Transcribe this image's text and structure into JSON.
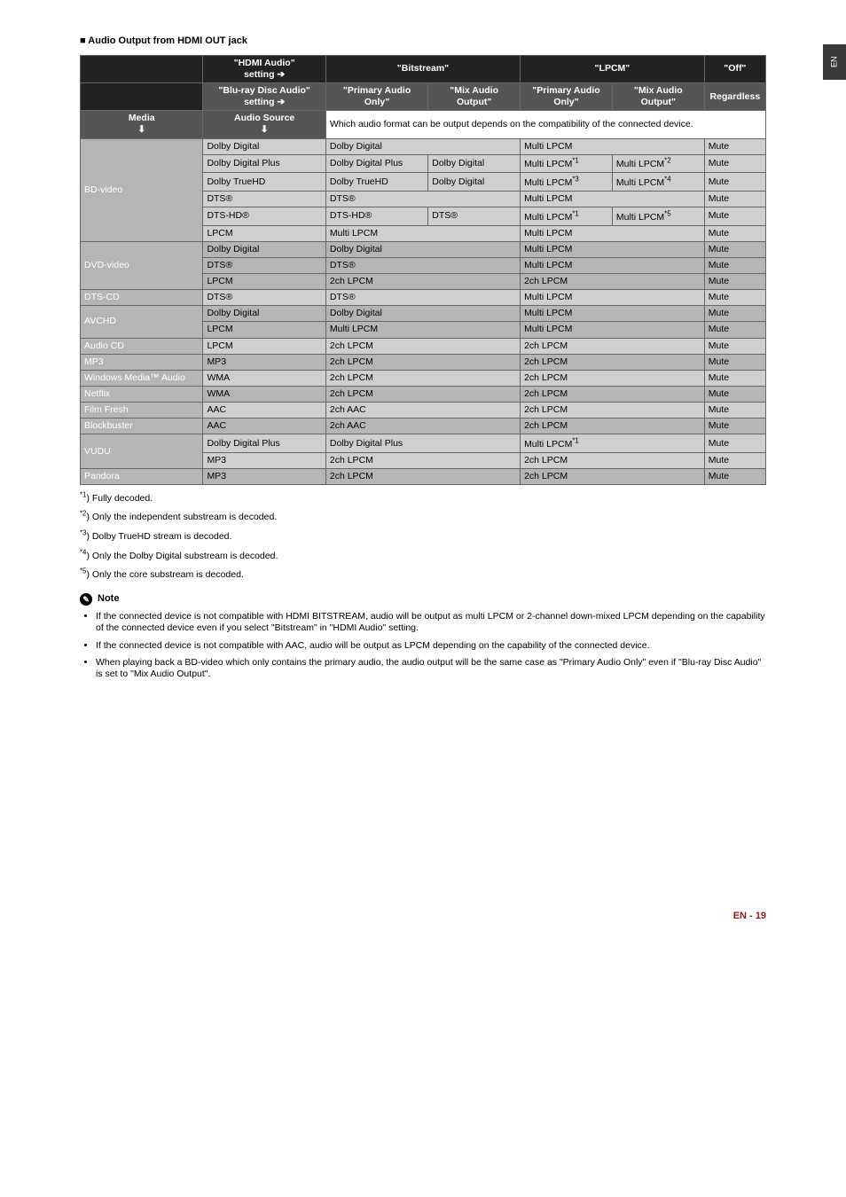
{
  "side_tab": "EN",
  "section_title": "Audio Output from HDMI OUT jack",
  "header": {
    "blank_left": "",
    "hdmi_audio": "\"HDMI Audio\"\nsetting  ➔",
    "bitstream": "\"Bitstream\"",
    "lpcm": "\"LPCM\"",
    "off": "\"Off\"",
    "bluray": "\"Blu-ray Disc Audio\" setting ➔",
    "primary_audio_only": "\"Primary Audio Only\"",
    "mix_audio_output": "\"Mix Audio Output\"",
    "regardless": "Regardless",
    "media": "Media\n⬇",
    "audio_source": "Audio Source\n⬇",
    "which": "Which audio format can be output depends on the compatibility of the connected device."
  },
  "rows": {
    "bd": {
      "label": "BD-video",
      "r1": {
        "src": "Dolby Digital",
        "bits": "Dolby Digital",
        "lpcm": "Multi LPCM",
        "off": "Mute"
      },
      "r2": {
        "src": "Dolby Digital Plus",
        "bits1": "Dolby Digital Plus",
        "bits2": "Dolby Digital",
        "lpcm1": "Multi LPCM*1",
        "lpcm2": "Multi LPCM*2",
        "off": "Mute"
      },
      "r3": {
        "src": "Dolby TrueHD",
        "bits1": "Dolby TrueHD",
        "bits2": "Dolby Digital",
        "lpcm1": "Multi LPCM*3",
        "lpcm2": "Multi LPCM*4",
        "off": "Mute"
      },
      "r4": {
        "src": "DTS®",
        "bits": "DTS®",
        "lpcm": "Multi LPCM",
        "off": "Mute"
      },
      "r5": {
        "src": "DTS-HD®",
        "bits1": "DTS-HD®",
        "bits2": "DTS®",
        "lpcm1": "Multi LPCM*1",
        "lpcm2": "Multi LPCM*5",
        "off": "Mute"
      },
      "r6": {
        "src": "LPCM",
        "bits": "Multi LPCM",
        "lpcm": "Multi LPCM",
        "off": "Mute"
      }
    },
    "dvd": {
      "label": "DVD-video",
      "r1": {
        "src": "Dolby Digital",
        "bits": "Dolby Digital",
        "lpcm": "Multi LPCM",
        "off": "Mute"
      },
      "r2": {
        "src": "DTS®",
        "bits": "DTS®",
        "lpcm": "Multi LPCM",
        "off": "Mute"
      },
      "r3": {
        "src": "LPCM",
        "bits": "2ch LPCM",
        "lpcm": "2ch LPCM",
        "off": "Mute"
      }
    },
    "dtscd": {
      "label": "DTS-CD",
      "src": "DTS®",
      "bits": "DTS®",
      "lpcm": "Multi LPCM",
      "off": "Mute"
    },
    "avchd": {
      "label": "AVCHD",
      "r1": {
        "src": "Dolby Digital",
        "bits": "Dolby Digital",
        "lpcm": "Multi LPCM",
        "off": "Mute"
      },
      "r2": {
        "src": "LPCM",
        "bits": "Multi LPCM",
        "lpcm": "Multi LPCM",
        "off": "Mute"
      }
    },
    "audiocd": {
      "label": "Audio CD",
      "src": "LPCM",
      "bits": "2ch LPCM",
      "lpcm": "2ch LPCM",
      "off": "Mute"
    },
    "mp3": {
      "label": "MP3",
      "src": "MP3",
      "bits": "2ch LPCM",
      "lpcm": "2ch LPCM",
      "off": "Mute"
    },
    "wma": {
      "label": "Windows Media™ Audio",
      "src": "WMA",
      "bits": "2ch LPCM",
      "lpcm": "2ch LPCM",
      "off": "Mute"
    },
    "netflix": {
      "label": "Netflix",
      "src": "WMA",
      "bits": "2ch LPCM",
      "lpcm": "2ch LPCM",
      "off": "Mute"
    },
    "filmfresh": {
      "label": "Film Fresh",
      "src": "AAC",
      "bits": "2ch AAC",
      "lpcm": "2ch LPCM",
      "off": "Mute"
    },
    "blockbuster": {
      "label": "Blockbuster",
      "src": "AAC",
      "bits": "2ch AAC",
      "lpcm": "2ch LPCM",
      "off": "Mute"
    },
    "vudu": {
      "label": "VUDU",
      "r1": {
        "src": "Dolby Digital Plus",
        "bits": "Dolby Digital Plus",
        "lpcm": "Multi LPCM*1",
        "off": "Mute"
      },
      "r2": {
        "src": "MP3",
        "bits": "2ch LPCM",
        "lpcm": "2ch LPCM",
        "off": "Mute"
      }
    },
    "pandora": {
      "label": "Pandora",
      "src": "MP3",
      "bits": "2ch LPCM",
      "lpcm": "2ch LPCM",
      "off": "Mute"
    }
  },
  "footnotes": {
    "f1": "*1) Fully decoded.",
    "f2": "*2) Only the independent substream is decoded.",
    "f3": "*3) Dolby TrueHD stream is decoded.",
    "f4": "*4) Only the Dolby Digital substream is decoded.",
    "f5": "*5) Only the core substream is decoded."
  },
  "note_label": "Note",
  "notes": {
    "n1": "If the connected device is not compatible with HDMI BITSTREAM, audio will be output as multi LPCM or 2-channel down-mixed LPCM depending on the capability of the connected device even if you select \"Bitstream\" in \"HDMI Audio\" setting.",
    "n2": "If the connected device is not compatible with AAC, audio will be output as LPCM depending on the capability of the connected device.",
    "n3": "When playing back a BD-video which only contains the primary audio, the audio output will be the same case as \"Primary Audio Only\" even if \"Blu-ray Disc Audio\" is set to \"Mix Audio Output\"."
  },
  "footer": "EN - 19"
}
